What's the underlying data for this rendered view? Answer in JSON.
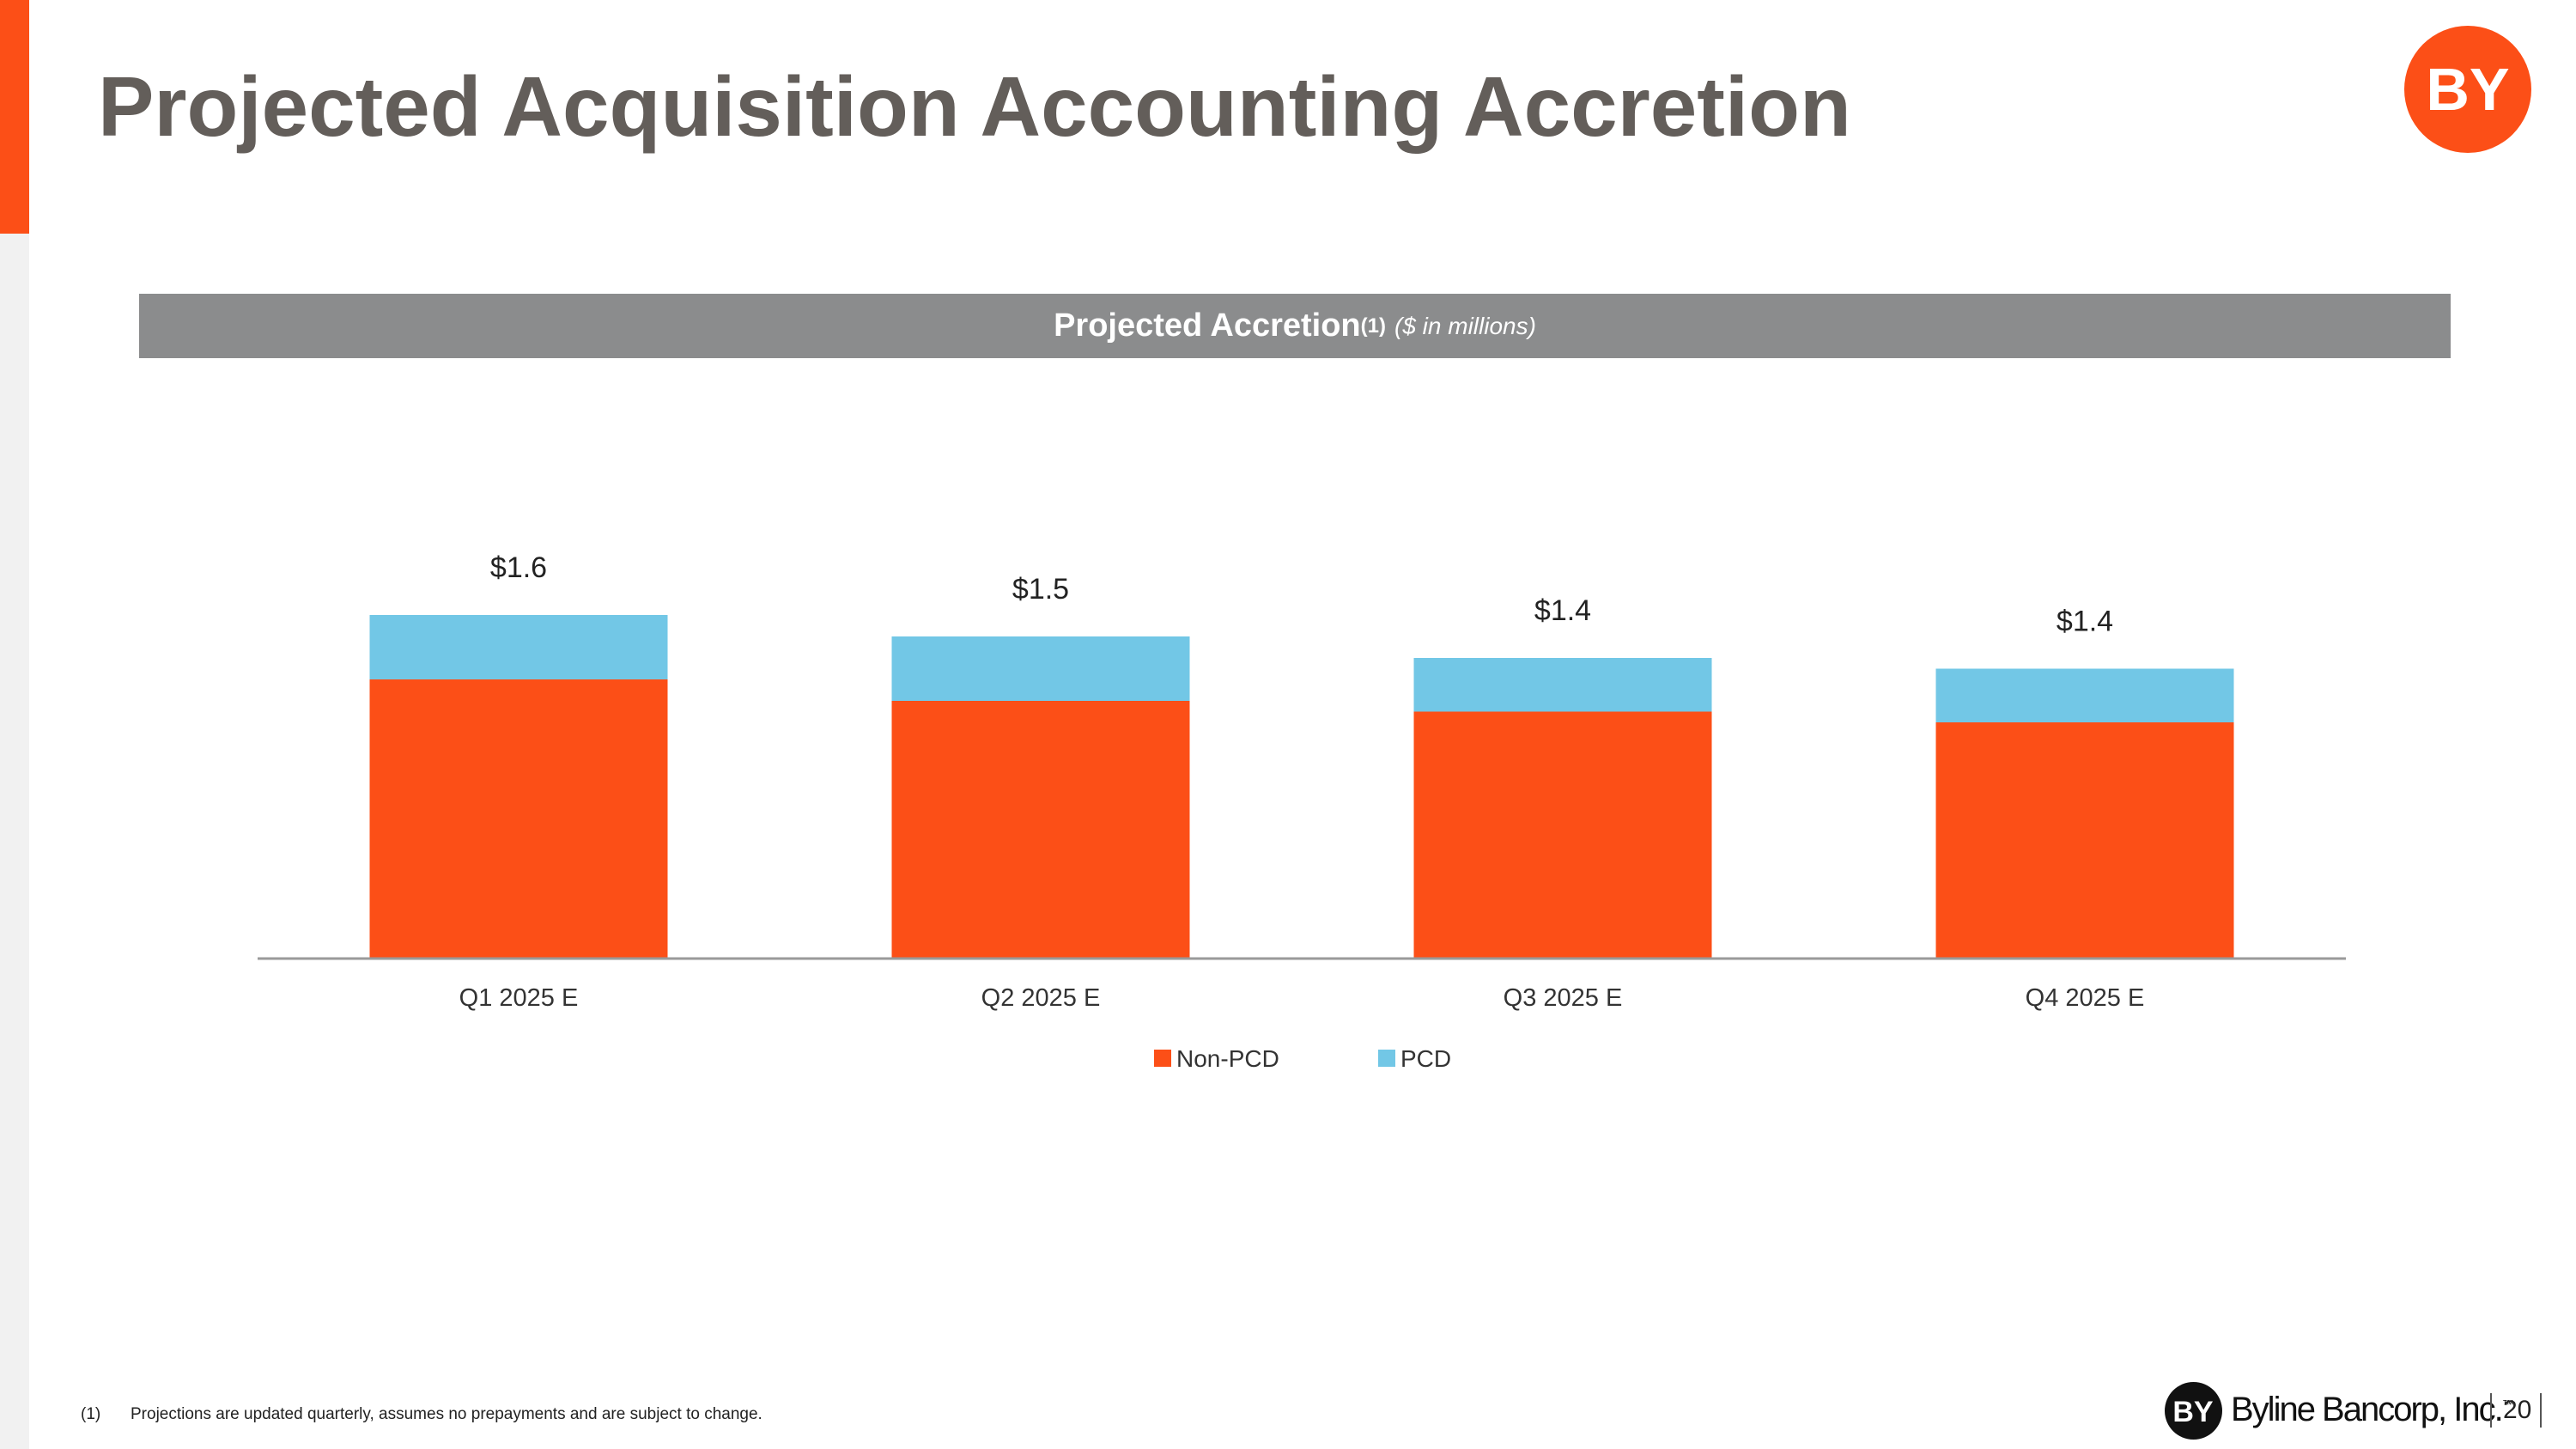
{
  "slide": {
    "title": "Projected Acquisition Accounting Accretion",
    "banner": {
      "title": "Projected Accretion",
      "superscript": "(1)",
      "subtitle": "($ in millions)"
    },
    "footnote": {
      "number": "(1)",
      "text": "Projections are updated quarterly, assumes no prepayments and are subject to change."
    },
    "brand": {
      "logo_text": "BY",
      "name": "Byline Bancorp, Inc.",
      "mark": "™"
    },
    "page_number": "20"
  },
  "colors": {
    "accent": "#fc4f17",
    "pcd": "#72c7e6",
    "title": "#635e5a",
    "banner": "#8b8c8d",
    "axis": "#9a9a9a"
  },
  "chart_data": {
    "type": "bar",
    "stacked": true,
    "categories": [
      "Q1 2025 E",
      "Q2 2025 E",
      "Q3 2025 E",
      "Q4 2025 E"
    ],
    "series": [
      {
        "name": "Non-PCD",
        "values": [
          1.3,
          1.2,
          1.15,
          1.1
        ]
      },
      {
        "name": "PCD",
        "values": [
          0.3,
          0.3,
          0.25,
          0.25
        ]
      }
    ],
    "total_labels": [
      "$1.6",
      "$1.5",
      "$1.4",
      "$1.4"
    ],
    "ylim": [
      0,
      1.6
    ],
    "grid": false,
    "legend_position": "bottom"
  }
}
